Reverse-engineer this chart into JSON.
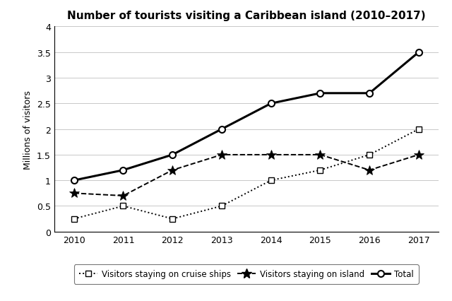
{
  "title": "Number of tourists visiting a Caribbean island (2010–2017)",
  "ylabel": "Millions of visitors",
  "years": [
    2010,
    2011,
    2012,
    2013,
    2014,
    2015,
    2016,
    2017
  ],
  "cruise_ships": [
    0.25,
    0.5,
    0.25,
    0.5,
    1.0,
    1.2,
    1.5,
    2.0
  ],
  "island": [
    0.75,
    0.7,
    1.2,
    1.5,
    1.5,
    1.5,
    1.2,
    1.5
  ],
  "total": [
    1.0,
    1.2,
    1.5,
    2.0,
    2.5,
    2.7,
    2.7,
    3.5
  ],
  "ylim": [
    0,
    4
  ],
  "yticks": [
    0,
    0.5,
    1.0,
    1.5,
    2.0,
    2.5,
    3.0,
    3.5,
    4.0
  ],
  "ytick_labels": [
    "0",
    "0.5",
    "1",
    "1.5",
    "2",
    "2.5",
    "3",
    "3.5",
    "4"
  ],
  "legend_labels": [
    "Visitors staying on cruise ships",
    "Visitors staying on island",
    "Total"
  ],
  "background_color": "#ffffff",
  "title_fontsize": 11,
  "axis_fontsize": 9,
  "tick_fontsize": 9
}
